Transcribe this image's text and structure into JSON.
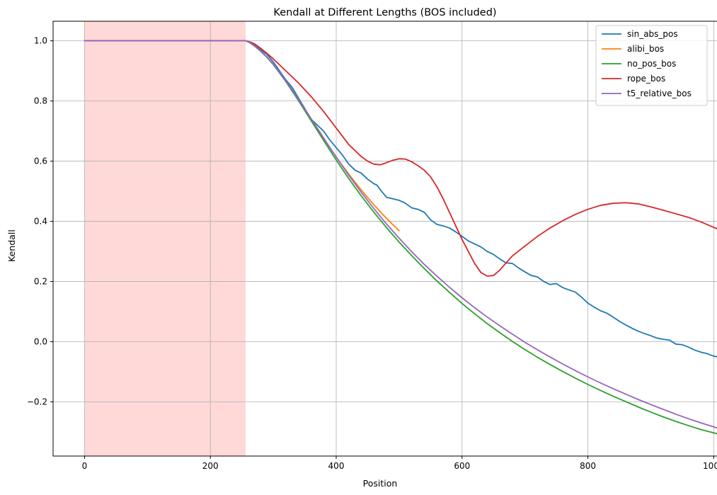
{
  "chart_data": {
    "type": "line",
    "title": "Kendall at Different Lengths (BOS included)",
    "xlabel": "Position",
    "ylabel": "Kendall",
    "xlim": [
      -50,
      1075
    ],
    "ylim": [
      -0.38,
      1.065
    ],
    "xticks": [
      0,
      200,
      400,
      600,
      800,
      1000
    ],
    "yticks": [
      -0.2,
      0.0,
      0.2,
      0.4,
      0.6,
      0.8,
      1.0
    ],
    "xtick_labels": [
      "0",
      "200",
      "400",
      "600",
      "800",
      "1000"
    ],
    "ytick_labels": [
      "−0.2",
      "0.0",
      "0.2",
      "0.4",
      "0.6",
      "0.8",
      "1.0"
    ],
    "grid": true,
    "legend_position": "top-right",
    "shaded_region": {
      "x_start": 0,
      "x_end": 256,
      "color": "#ffd8d8"
    },
    "series": [
      {
        "name": "sin_abs_pos",
        "color": "#1f77b4",
        "x": [
          0,
          256,
          262,
          270,
          280,
          290,
          300,
          310,
          320,
          330,
          340,
          350,
          360,
          370,
          380,
          390,
          400,
          410,
          420,
          430,
          440,
          450,
          460,
          465,
          470,
          480,
          490,
          500,
          510,
          520,
          530,
          540,
          550,
          560,
          570,
          580,
          590,
          600,
          610,
          620,
          630,
          640,
          650,
          660,
          670,
          680,
          690,
          700,
          710,
          720,
          730,
          740,
          745,
          750,
          760,
          770,
          780,
          790,
          800,
          810,
          820,
          830,
          840,
          850,
          860,
          870,
          880,
          890,
          900,
          910,
          920,
          930,
          940,
          950,
          960,
          970,
          980,
          990,
          1000,
          1010,
          1023
        ],
        "y": [
          1.0,
          1.0,
          0.995,
          0.985,
          0.97,
          0.955,
          0.93,
          0.9,
          0.87,
          0.845,
          0.81,
          0.775,
          0.74,
          0.72,
          0.7,
          0.67,
          0.645,
          0.62,
          0.59,
          0.57,
          0.56,
          0.54,
          0.525,
          0.52,
          0.505,
          0.48,
          0.475,
          0.47,
          0.46,
          0.445,
          0.44,
          0.43,
          0.405,
          0.39,
          0.385,
          0.378,
          0.365,
          0.35,
          0.335,
          0.325,
          0.315,
          0.3,
          0.29,
          0.275,
          0.262,
          0.26,
          0.245,
          0.232,
          0.22,
          0.215,
          0.2,
          0.19,
          0.192,
          0.193,
          0.18,
          0.172,
          0.165,
          0.148,
          0.128,
          0.115,
          0.103,
          0.095,
          0.082,
          0.068,
          0.056,
          0.045,
          0.035,
          0.027,
          0.02,
          0.012,
          0.008,
          0.005,
          -0.008,
          -0.01,
          -0.018,
          -0.028,
          -0.035,
          -0.04,
          -0.048,
          -0.052,
          -0.06
        ]
      },
      {
        "name": "alibi_bos",
        "color": "#ff7f0e",
        "x": [
          0,
          256,
          262,
          270,
          280,
          290,
          300,
          310,
          320,
          330,
          340,
          350,
          360,
          370,
          380,
          390,
          400,
          410,
          420,
          430,
          440,
          450,
          460,
          470,
          480,
          490,
          500
        ],
        "y": [
          1.0,
          1.0,
          0.995,
          0.983,
          0.966,
          0.946,
          0.922,
          0.895,
          0.866,
          0.836,
          0.805,
          0.773,
          0.741,
          0.709,
          0.677,
          0.645,
          0.614,
          0.585,
          0.557,
          0.53,
          0.504,
          0.479,
          0.455,
          0.432,
          0.41,
          0.389,
          0.369
        ]
      },
      {
        "name": "no_pos_bos",
        "color": "#2ca02c",
        "x": [
          0,
          256,
          262,
          270,
          280,
          290,
          300,
          310,
          320,
          330,
          340,
          350,
          360,
          370,
          380,
          390,
          400,
          420,
          440,
          460,
          480,
          500,
          520,
          540,
          560,
          580,
          600,
          620,
          640,
          660,
          680,
          700,
          720,
          740,
          760,
          780,
          800,
          820,
          840,
          860,
          880,
          900,
          920,
          940,
          960,
          980,
          1000,
          1023
        ],
        "y": [
          1.0,
          1.0,
          0.995,
          0.983,
          0.965,
          0.945,
          0.921,
          0.893,
          0.864,
          0.833,
          0.801,
          0.768,
          0.735,
          0.702,
          0.669,
          0.636,
          0.604,
          0.542,
          0.484,
          0.43,
          0.379,
          0.331,
          0.286,
          0.243,
          0.202,
          0.164,
          0.127,
          0.093,
          0.06,
          0.03,
          0.001,
          -0.026,
          -0.052,
          -0.076,
          -0.099,
          -0.121,
          -0.142,
          -0.162,
          -0.181,
          -0.199,
          -0.217,
          -0.234,
          -0.25,
          -0.265,
          -0.279,
          -0.292,
          -0.303,
          -0.315
        ]
      },
      {
        "name": "rope_bos",
        "color": "#d62728",
        "x": [
          0,
          256,
          262,
          270,
          280,
          290,
          300,
          320,
          340,
          360,
          380,
          400,
          420,
          440,
          450,
          460,
          470,
          480,
          490,
          500,
          510,
          520,
          530,
          540,
          550,
          560,
          570,
          580,
          590,
          600,
          610,
          620,
          630,
          640,
          650,
          660,
          670,
          680,
          700,
          720,
          740,
          760,
          780,
          800,
          820,
          840,
          860,
          880,
          900,
          920,
          940,
          960,
          980,
          1000,
          1023
        ],
        "y": [
          1.0,
          1.0,
          0.997,
          0.99,
          0.975,
          0.958,
          0.94,
          0.9,
          0.86,
          0.815,
          0.765,
          0.71,
          0.655,
          0.615,
          0.6,
          0.59,
          0.588,
          0.595,
          0.603,
          0.608,
          0.607,
          0.598,
          0.585,
          0.57,
          0.548,
          0.515,
          0.475,
          0.43,
          0.385,
          0.34,
          0.3,
          0.26,
          0.23,
          0.218,
          0.22,
          0.238,
          0.262,
          0.285,
          0.318,
          0.35,
          0.378,
          0.402,
          0.423,
          0.44,
          0.453,
          0.46,
          0.462,
          0.458,
          0.448,
          0.437,
          0.425,
          0.413,
          0.398,
          0.38,
          0.36
        ]
      },
      {
        "name": "t5_relative_bos",
        "color": "#9467bd",
        "x": [
          0,
          256,
          262,
          270,
          280,
          290,
          300,
          310,
          320,
          330,
          340,
          350,
          360,
          370,
          380,
          390,
          400,
          420,
          440,
          460,
          480,
          500,
          520,
          540,
          560,
          580,
          600,
          620,
          640,
          660,
          680,
          700,
          720,
          740,
          760,
          780,
          800,
          820,
          840,
          860,
          880,
          900,
          920,
          940,
          960,
          980,
          1000,
          1023
        ],
        "y": [
          1.0,
          1.0,
          0.995,
          0.983,
          0.966,
          0.946,
          0.922,
          0.895,
          0.866,
          0.836,
          0.805,
          0.773,
          0.741,
          0.709,
          0.677,
          0.645,
          0.614,
          0.553,
          0.496,
          0.442,
          0.391,
          0.344,
          0.299,
          0.257,
          0.218,
          0.181,
          0.146,
          0.113,
          0.082,
          0.053,
          0.025,
          -0.002,
          -0.027,
          -0.051,
          -0.074,
          -0.096,
          -0.117,
          -0.137,
          -0.156,
          -0.174,
          -0.192,
          -0.209,
          -0.225,
          -0.241,
          -0.256,
          -0.27,
          -0.283,
          -0.3
        ]
      }
    ]
  }
}
